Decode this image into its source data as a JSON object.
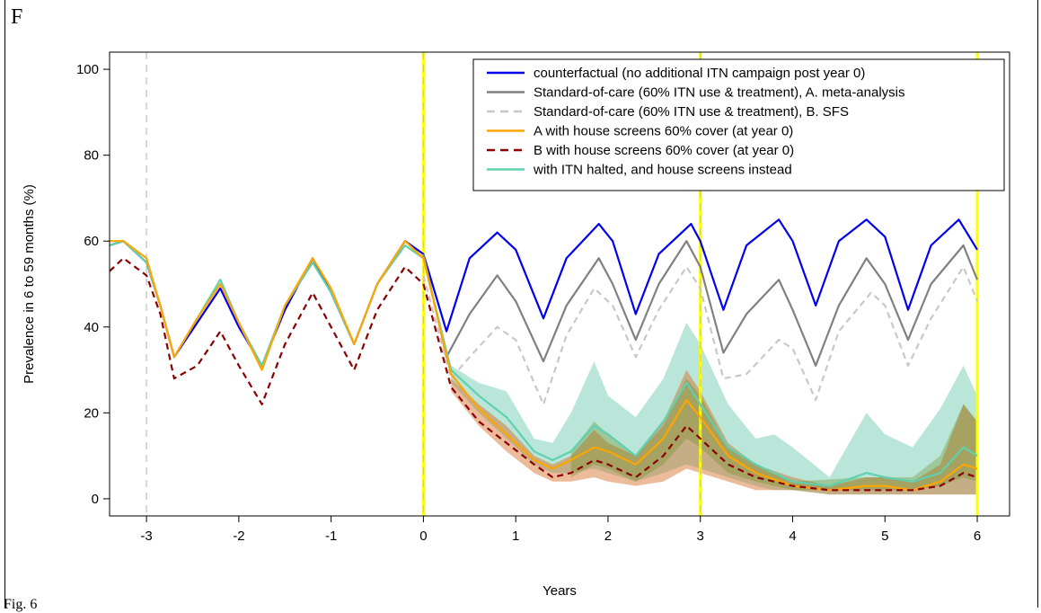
{
  "panel_label": "F",
  "caption_fragment": "Fig. 6",
  "chart_data": {
    "type": "line",
    "xlabel": "Years",
    "ylabel": "Prevalence in 6 to 59 months (%)",
    "xlim": [
      -3.4,
      6.35
    ],
    "ylim": [
      -4,
      104
    ],
    "xticks": [
      -3,
      -2,
      -1,
      0,
      1,
      2,
      3,
      4,
      5,
      6
    ],
    "yticks": [
      0,
      20,
      40,
      60,
      80,
      100
    ],
    "grid": false,
    "legend_position": "top-right",
    "vlines": [
      {
        "x": -3,
        "color": "#c8c8c8",
        "style": "dashed"
      },
      {
        "x": 0,
        "color": "#ffff00",
        "style": "solid"
      },
      {
        "x": 0,
        "color": "#c8c8c8",
        "style": "dashed"
      },
      {
        "x": 3,
        "color": "#ffff00",
        "style": "solid"
      },
      {
        "x": 3,
        "color": "#c8c8c8",
        "style": "dashed"
      },
      {
        "x": 6,
        "color": "#ffff00",
        "style": "solid"
      }
    ],
    "series": [
      {
        "name": "counterfactual (no additional ITN campaign post year 0)",
        "color": "#0000ee",
        "dash": "solid",
        "x": [
          -3.4,
          -3.25,
          -3.0,
          -2.85,
          -2.7,
          -2.45,
          -2.2,
          -2.0,
          -1.75,
          -1.5,
          -1.2,
          -1.0,
          -0.75,
          -0.5,
          -0.2,
          0.0,
          0.25,
          0.5,
          0.8,
          1.0,
          1.3,
          1.55,
          1.9,
          2.05,
          2.3,
          2.55,
          2.9,
          3.0,
          3.25,
          3.5,
          3.85,
          4.0,
          4.25,
          4.5,
          4.8,
          5.0,
          5.25,
          5.5,
          5.8,
          6.0
        ],
        "y": [
          59,
          60,
          55,
          45,
          33,
          41,
          49,
          40,
          31,
          44,
          56,
          48,
          36,
          50,
          60,
          57,
          39,
          56,
          62,
          58,
          42,
          56,
          64,
          60,
          43,
          57,
          64,
          60,
          44,
          59,
          65,
          60,
          45,
          60,
          65,
          61,
          44,
          59,
          65,
          58
        ]
      },
      {
        "name": "Standard-of-care (60% ITN use & treatment), A. meta-analysis",
        "color": "#808080",
        "dash": "solid",
        "x": [
          0.0,
          0.25,
          0.5,
          0.8,
          1.0,
          1.3,
          1.55,
          1.9,
          2.05,
          2.3,
          2.55,
          2.85,
          3.0,
          3.25,
          3.5,
          3.85,
          4.0,
          4.25,
          4.5,
          4.8,
          5.0,
          5.25,
          5.5,
          5.85,
          6.0
        ],
        "y": [
          57,
          33,
          43,
          52,
          46,
          32,
          45,
          56,
          50,
          37,
          50,
          60,
          54,
          34,
          43,
          51,
          44,
          31,
          45,
          56,
          50,
          37,
          50,
          59,
          51
        ]
      },
      {
        "name": "Standard-of-care (60% ITN use & treatment), B. SFS",
        "color": "#c8c8c8",
        "dash": "dashed",
        "x": [
          0.0,
          0.3,
          0.5,
          0.8,
          1.0,
          1.3,
          1.55,
          1.85,
          2.05,
          2.3,
          2.55,
          2.85,
          3.0,
          3.25,
          3.5,
          3.85,
          4.0,
          4.25,
          4.5,
          4.85,
          5.0,
          5.25,
          5.5,
          5.85,
          6.0
        ],
        "y": [
          52,
          28,
          33,
          40,
          37,
          22,
          38,
          49,
          45,
          33,
          44,
          54,
          49,
          28,
          29,
          37,
          35,
          23,
          39,
          48,
          45,
          31,
          42,
          54,
          46
        ]
      },
      {
        "name": "A with house screens 60% cover (at year 0)",
        "color": "#ffa500",
        "dash": "solid",
        "x": [
          -3.4,
          -3.25,
          -3.0,
          -2.85,
          -2.7,
          -2.45,
          -2.2,
          -2.0,
          -1.75,
          -1.5,
          -1.2,
          -1.0,
          -0.75,
          -0.5,
          -0.2,
          0.0,
          0.3,
          0.6,
          0.9,
          1.2,
          1.4,
          1.6,
          1.85,
          2.0,
          2.3,
          2.6,
          2.85,
          3.0,
          3.3,
          3.6,
          4.0,
          4.4,
          4.8,
          5.0,
          5.3,
          5.6,
          5.85,
          6.0
        ],
        "y": [
          60,
          60,
          56,
          45,
          33,
          42,
          50,
          41,
          30,
          45,
          56,
          49,
          36,
          50,
          60,
          56,
          29,
          21,
          15,
          9,
          7,
          9,
          12,
          11,
          8,
          14,
          23,
          19,
          10,
          6,
          3,
          2,
          3,
          3,
          2,
          4,
          8,
          7
        ]
      },
      {
        "name": "B with house screens 60% cover (at year 0)",
        "color": "#8b0000",
        "dash": "dashed",
        "x": [
          -3.4,
          -3.25,
          -3.0,
          -2.85,
          -2.7,
          -2.45,
          -2.2,
          -2.0,
          -1.75,
          -1.5,
          -1.2,
          -1.0,
          -0.75,
          -0.5,
          -0.2,
          0.0,
          0.3,
          0.6,
          0.9,
          1.2,
          1.4,
          1.6,
          1.85,
          2.0,
          2.3,
          2.6,
          2.85,
          3.0,
          3.3,
          3.6,
          4.0,
          4.4,
          4.8,
          5.0,
          5.3,
          5.6,
          5.85,
          6.0
        ],
        "y": [
          53,
          56,
          52,
          43,
          28,
          31,
          39,
          31,
          22,
          36,
          48,
          40,
          30,
          44,
          54,
          50,
          26,
          18,
          13,
          8,
          5,
          6,
          9,
          8,
          5,
          10,
          17,
          14,
          8,
          5,
          3,
          2,
          2,
          2,
          2,
          3,
          6,
          5
        ]
      },
      {
        "name": "with ITN halted, and house screens instead",
        "color": "#5fd0b0",
        "dash": "solid",
        "x": [
          -3.4,
          -3.25,
          -3.0,
          -2.85,
          -2.7,
          -2.45,
          -2.2,
          -2.0,
          -1.75,
          -1.5,
          -1.2,
          -1.0,
          -0.75,
          -0.5,
          -0.2,
          0.0,
          0.3,
          0.6,
          0.9,
          1.2,
          1.4,
          1.6,
          1.85,
          2.0,
          2.3,
          2.6,
          2.85,
          3.0,
          3.3,
          3.6,
          4.0,
          4.4,
          4.8,
          5.0,
          5.3,
          5.6,
          5.85,
          6.0
        ],
        "y": [
          59,
          60,
          55,
          45,
          33,
          42,
          51,
          41,
          31,
          45,
          55,
          48,
          36,
          50,
          59,
          56,
          30,
          24,
          19,
          11,
          9,
          11,
          17,
          15,
          10,
          18,
          27,
          22,
          12,
          8,
          4,
          3,
          6,
          5,
          4,
          6,
          12,
          10
        ]
      }
    ],
    "bands": [
      {
        "color": "#2db48c",
        "opacity": 0.33,
        "x": [
          0.3,
          0.6,
          0.9,
          1.2,
          1.4,
          1.6,
          1.85,
          2.0,
          2.3,
          2.6,
          2.85,
          3.0,
          3.3,
          3.6,
          3.8,
          4.0,
          4.4,
          4.8,
          5.0,
          5.3,
          5.6,
          5.85,
          6.0
        ],
        "lower": [
          27,
          20,
          14,
          8,
          6,
          6,
          7,
          6,
          4,
          6,
          8,
          7,
          5,
          3,
          2,
          2,
          1,
          1,
          1,
          1,
          1,
          1,
          1
        ],
        "upper": [
          31,
          27,
          25,
          14,
          13,
          20,
          32,
          24,
          19,
          28,
          41,
          36,
          22,
          14,
          15,
          12,
          5,
          20,
          15,
          12,
          21,
          31,
          24
        ]
      },
      {
        "color": "#d2691e",
        "opacity": 0.45,
        "x": [
          0.3,
          0.6,
          0.9,
          1.2,
          1.4,
          1.6,
          1.85,
          2.0,
          2.3,
          2.6,
          2.85,
          3.0,
          3.3,
          3.6,
          4.0,
          4.4,
          4.8,
          5.0,
          5.3,
          5.6,
          5.85,
          6.0
        ],
        "lower": [
          25,
          17,
          11,
          6,
          4,
          4,
          5,
          4,
          3,
          4,
          7,
          6,
          4,
          2,
          2,
          1,
          1,
          1,
          1,
          1,
          1,
          1
        ],
        "upper": [
          28,
          22,
          17,
          10,
          8,
          10,
          16,
          13,
          10,
          18,
          30,
          25,
          13,
          8,
          5,
          3,
          5,
          5,
          4,
          8,
          22,
          18
        ]
      },
      {
        "color": "#6b8e23",
        "opacity": 0.35,
        "x": [
          1.6,
          1.85,
          2.0,
          2.3,
          2.6,
          2.85,
          3.0,
          3.3,
          3.6,
          4.0,
          4.8,
          5.3,
          5.6,
          5.85,
          6.0
        ],
        "lower": [
          5,
          8,
          7,
          4,
          8,
          14,
          12,
          6,
          4,
          2,
          2,
          2,
          3,
          5,
          4
        ],
        "upper": [
          11,
          18,
          15,
          10,
          17,
          28,
          24,
          12,
          8,
          4,
          5,
          5,
          10,
          22,
          18
        ]
      }
    ]
  }
}
